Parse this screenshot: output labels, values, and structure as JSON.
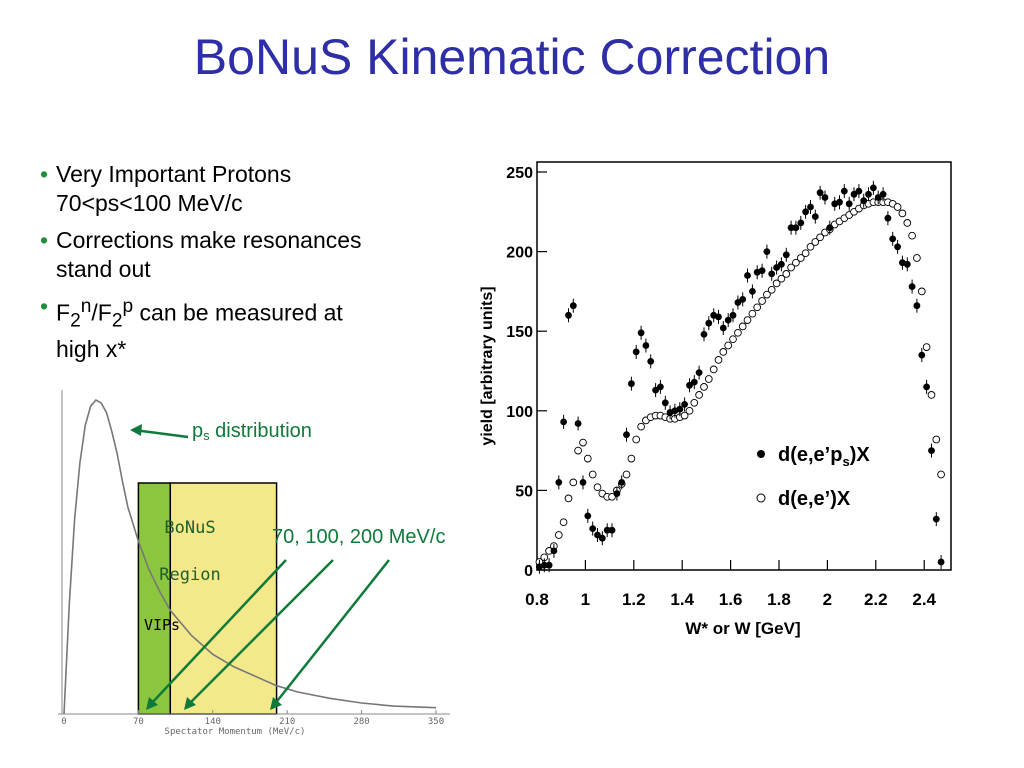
{
  "title": "BoNuS Kinematic Correction",
  "bullets": [
    {
      "lines": [
        "Very Important Protons",
        "70<ps<100 MeV/c"
      ]
    },
    {
      "lines": [
        "Corrections make resonances",
        "stand out"
      ]
    },
    {
      "parts": {
        "a": "F",
        "b": "2",
        "c": "n",
        "d": "/F",
        "e": "2",
        "f": "p",
        "g": " can be measured at"
      },
      "line2": "high x*"
    }
  ],
  "colors": {
    "title": "#2e2ea6",
    "bullet": "#1f8f3a",
    "annot": "#0f7a3a",
    "vip": "#8cc63e",
    "region": "#f4e98a"
  },
  "chart_data": [
    {
      "type": "line",
      "xlabel": "Spectator Momentum (MeV/c)",
      "xticks": [
        0,
        70,
        140,
        210,
        280,
        350
      ],
      "xlim": [
        0,
        350
      ],
      "curve": {
        "x": [
          0,
          5,
          10,
          15,
          20,
          25,
          30,
          35,
          40,
          45,
          50,
          55,
          60,
          70,
          80,
          90,
          100,
          120,
          140,
          160,
          180,
          200,
          220,
          250,
          280,
          310,
          350
        ],
        "y": [
          0,
          0.35,
          0.62,
          0.8,
          0.92,
          0.98,
          1.0,
          0.99,
          0.96,
          0.9,
          0.83,
          0.74,
          0.66,
          0.55,
          0.46,
          0.39,
          0.33,
          0.25,
          0.19,
          0.15,
          0.12,
          0.09,
          0.07,
          0.05,
          0.035,
          0.025,
          0.02
        ]
      },
      "annotations": {
        "ps_pre": "p",
        "ps_sub": "s",
        "ps_post": " distribution",
        "bonus1": "BoNuS",
        "bonus2": "Region",
        "vips": "VIPs",
        "cuts": "70, 100, 200 MeV/c"
      },
      "bands": {
        "vip": [
          70,
          100
        ],
        "region": [
          100,
          200
        ]
      }
    },
    {
      "type": "scatter",
      "xlabel": "W* or W [GeV]",
      "ylabel": "yield [arbitrary units]",
      "xlim": [
        0.8,
        2.5
      ],
      "ylim": [
        0,
        250
      ],
      "xticks": [
        "0.8",
        "1",
        "1.2",
        "1.4",
        "1.6",
        "1.8",
        "2",
        "2.2",
        "2.4"
      ],
      "yticks": [
        "0",
        "50",
        "100",
        "150",
        "200",
        "250"
      ],
      "legend": [
        "d(e,e’p",
        "s",
        ")X",
        "d(e,e’)X"
      ],
      "series": [
        {
          "name": "d(e,e’ps)X",
          "marker": "filled",
          "x": [
            0.81,
            0.83,
            0.85,
            0.87,
            0.89,
            0.91,
            0.93,
            0.95,
            0.97,
            0.99,
            1.01,
            1.03,
            1.05,
            1.07,
            1.09,
            1.11,
            1.13,
            1.15,
            1.17,
            1.19,
            1.21,
            1.23,
            1.25,
            1.27,
            1.29,
            1.31,
            1.33,
            1.35,
            1.37,
            1.39,
            1.41,
            1.43,
            1.45,
            1.47,
            1.49,
            1.51,
            1.53,
            1.55,
            1.57,
            1.59,
            1.61,
            1.63,
            1.65,
            1.67,
            1.69,
            1.71,
            1.73,
            1.75,
            1.77,
            1.79,
            1.81,
            1.83,
            1.85,
            1.87,
            1.89,
            1.91,
            1.93,
            1.95,
            1.97,
            1.99,
            2.01,
            2.03,
            2.05,
            2.07,
            2.09,
            2.11,
            2.13,
            2.15,
            2.17,
            2.19,
            2.21,
            2.23,
            2.25,
            2.27,
            2.29,
            2.31,
            2.33,
            2.35,
            2.37,
            2.39,
            2.41,
            2.43,
            2.45,
            2.47
          ],
          "y": [
            2,
            3,
            3,
            12,
            55,
            93,
            160,
            166,
            92,
            55,
            34,
            26,
            22,
            20,
            25,
            25,
            48,
            55,
            85,
            117,
            137,
            149,
            141,
            131,
            113,
            115,
            105,
            99,
            100,
            101,
            104,
            116,
            118,
            124,
            148,
            155,
            160,
            159,
            152,
            157,
            160,
            168,
            170,
            185,
            175,
            187,
            188,
            200,
            186,
            190,
            192,
            198,
            215,
            215,
            218,
            225,
            228,
            222,
            237,
            234,
            215,
            230,
            231,
            238,
            230,
            236,
            238,
            232,
            236,
            240,
            234,
            236,
            221,
            208,
            203,
            193,
            192,
            178,
            166,
            135,
            115,
            75,
            32,
            5
          ]
        },
        {
          "name": "d(e,e’)X",
          "marker": "open",
          "x": [
            0.81,
            0.83,
            0.85,
            0.87,
            0.89,
            0.91,
            0.93,
            0.95,
            0.97,
            0.99,
            1.01,
            1.03,
            1.05,
            1.07,
            1.09,
            1.11,
            1.13,
            1.15,
            1.17,
            1.19,
            1.21,
            1.23,
            1.25,
            1.27,
            1.29,
            1.31,
            1.33,
            1.35,
            1.37,
            1.39,
            1.41,
            1.43,
            1.45,
            1.47,
            1.49,
            1.51,
            1.53,
            1.55,
            1.57,
            1.59,
            1.61,
            1.63,
            1.65,
            1.67,
            1.69,
            1.71,
            1.73,
            1.75,
            1.77,
            1.79,
            1.81,
            1.83,
            1.85,
            1.87,
            1.89,
            1.91,
            1.93,
            1.95,
            1.97,
            1.99,
            2.01,
            2.03,
            2.05,
            2.07,
            2.09,
            2.11,
            2.13,
            2.15,
            2.17,
            2.19,
            2.21,
            2.23,
            2.25,
            2.27,
            2.29,
            2.31,
            2.33,
            2.35,
            2.37,
            2.39,
            2.41,
            2.43,
            2.45,
            2.47
          ],
          "y": [
            5,
            8,
            12,
            15,
            22,
            30,
            45,
            55,
            75,
            80,
            70,
            60,
            52,
            48,
            46,
            46,
            50,
            54,
            60,
            70,
            82,
            90,
            94,
            96,
            97,
            97,
            96,
            95,
            95,
            96,
            97,
            100,
            105,
            110,
            115,
            120,
            126,
            132,
            137,
            141,
            145,
            149,
            153,
            157,
            161,
            165,
            169,
            173,
            176,
            180,
            183,
            186,
            190,
            193,
            196,
            199,
            203,
            206,
            209,
            212,
            214,
            217,
            219,
            221,
            223,
            225,
            227,
            229,
            230,
            231,
            231,
            231,
            231,
            230,
            228,
            224,
            218,
            210,
            196,
            175,
            140,
            110,
            82,
            60
          ]
        }
      ]
    }
  ]
}
